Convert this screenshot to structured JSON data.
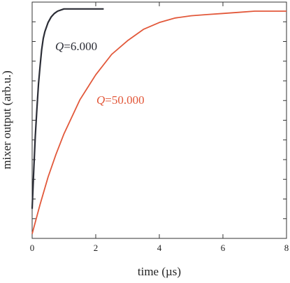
{
  "chart_data": {
    "type": "line",
    "xlabel": "time (µs)",
    "ylabel": "mixer output (arb.u.)",
    "xlim": [
      0,
      8
    ],
    "ylim": [
      0,
      1.04
    ],
    "x_ticks": [
      0,
      2,
      4,
      6,
      8
    ],
    "x_tick_labels": [
      "0",
      "2",
      "4",
      "6",
      "8"
    ],
    "y_minor_tick_count": 11,
    "y_tick_labels_shown": false,
    "grid": false,
    "legend": "none",
    "series": [
      {
        "color": "#2b2d36",
        "label_prefix": "Q",
        "label_suffix": "=6.000",
        "x": [
          0,
          0.05,
          0.1,
          0.15,
          0.2,
          0.25,
          0.3,
          0.35,
          0.4,
          0.5,
          0.6,
          0.7,
          0.8,
          1.0,
          1.2,
          1.5,
          1.8,
          2.0,
          2.25
        ],
        "y": [
          0.13,
          0.3,
          0.45,
          0.57,
          0.68,
          0.76,
          0.83,
          0.88,
          0.91,
          0.95,
          0.975,
          0.99,
          1.0,
          1.01,
          1.01,
          1.01,
          1.01,
          1.01,
          1.01
        ]
      },
      {
        "color": "#e2583a",
        "label_prefix": "Q",
        "label_suffix": "=50.000",
        "x": [
          0,
          0.25,
          0.5,
          0.75,
          1.0,
          1.5,
          2.0,
          2.5,
          3.0,
          3.5,
          4.0,
          4.5,
          5.0,
          5.5,
          6.0,
          6.5,
          7.0,
          7.5,
          8.0
        ],
        "y": [
          0.02,
          0.15,
          0.27,
          0.37,
          0.46,
          0.61,
          0.72,
          0.81,
          0.87,
          0.92,
          0.95,
          0.97,
          0.98,
          0.985,
          0.99,
          0.995,
          1.0,
          1.0,
          1.0
        ]
      }
    ]
  }
}
